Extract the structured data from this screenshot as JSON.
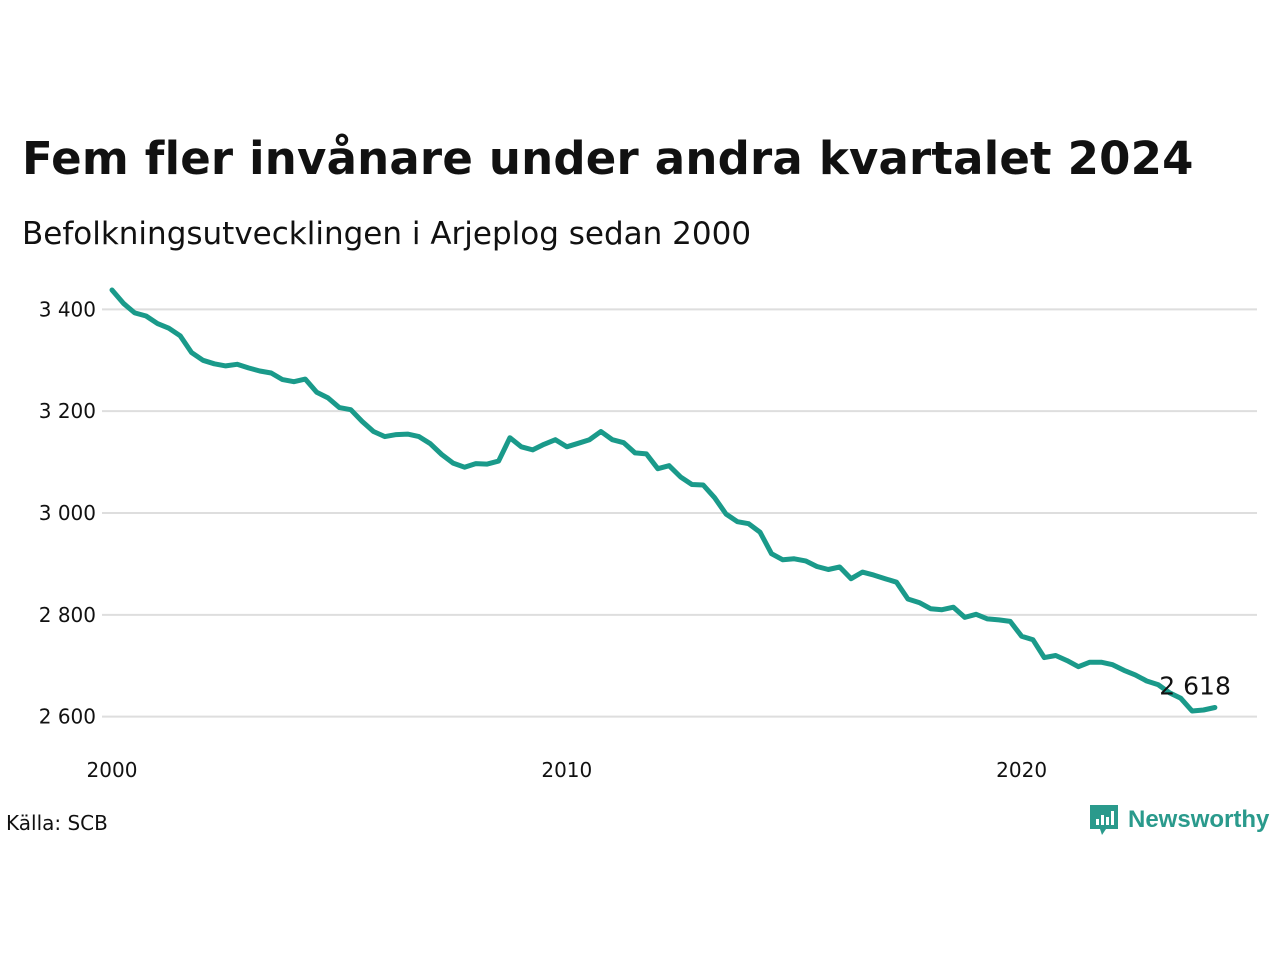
{
  "title": "Fem fler invånare under andra kvartalet 2024",
  "subtitle": "Befolkningsutvecklingen i Arjeplog sedan 2000",
  "source": "Källa: SCB",
  "brand": {
    "name": "Newsworthy",
    "color": "#2a9a8c",
    "icon": "newsworthy-logo-icon"
  },
  "chart_data": {
    "type": "line",
    "title": "Fem fler invånare under andra kvartalet 2024",
    "subtitle": "Befolkningsutvecklingen i Arjeplog sedan 2000",
    "xlabel": "",
    "ylabel": "",
    "xlim": [
      2000,
      2025
    ],
    "ylim": [
      2560,
      3440
    ],
    "y_ticks": [
      {
        "value": 2600,
        "label": "2 600"
      },
      {
        "value": 2800,
        "label": "2 800"
      },
      {
        "value": 3000,
        "label": "3 000"
      },
      {
        "value": 3200,
        "label": "3 200"
      },
      {
        "value": 3400,
        "label": "3 400"
      }
    ],
    "x_ticks": [
      {
        "value": 2000,
        "label": "2000"
      },
      {
        "value": 2010,
        "label": "2010"
      },
      {
        "value": 2020,
        "label": "2020"
      }
    ],
    "grid": true,
    "line_color": "#1a9a8a",
    "end_label": "2 618",
    "series": [
      {
        "values": [
          [
            2000.0,
            3438
          ],
          [
            2000.25,
            3412
          ],
          [
            2000.5,
            3393
          ],
          [
            2000.75,
            3387
          ],
          [
            2001.0,
            3372
          ],
          [
            2001.25,
            3363
          ],
          [
            2001.5,
            3348
          ],
          [
            2001.75,
            3315
          ],
          [
            2002.0,
            3300
          ],
          [
            2002.25,
            3293
          ],
          [
            2002.5,
            3289
          ],
          [
            2002.75,
            3292
          ],
          [
            2003.0,
            3285
          ],
          [
            2003.25,
            3279
          ],
          [
            2003.5,
            3275
          ],
          [
            2003.75,
            3262
          ],
          [
            2004.0,
            3258
          ],
          [
            2004.25,
            3263
          ],
          [
            2004.5,
            3237
          ],
          [
            2004.75,
            3226
          ],
          [
            2005.0,
            3207
          ],
          [
            2005.25,
            3203
          ],
          [
            2005.5,
            3180
          ],
          [
            2005.75,
            3160
          ],
          [
            2006.0,
            3150
          ],
          [
            2006.25,
            3154
          ],
          [
            2006.5,
            3155
          ],
          [
            2006.75,
            3150
          ],
          [
            2007.0,
            3136
          ],
          [
            2007.25,
            3115
          ],
          [
            2007.5,
            3098
          ],
          [
            2007.75,
            3090
          ],
          [
            2008.0,
            3097
          ],
          [
            2008.25,
            3096
          ],
          [
            2008.5,
            3102
          ],
          [
            2008.75,
            3148
          ],
          [
            2009.0,
            3130
          ],
          [
            2009.25,
            3124
          ],
          [
            2009.5,
            3135
          ],
          [
            2009.75,
            3144
          ],
          [
            2010.0,
            3130
          ],
          [
            2010.25,
            3137
          ],
          [
            2010.5,
            3144
          ],
          [
            2010.75,
            3160
          ],
          [
            2011.0,
            3144
          ],
          [
            2011.25,
            3138
          ],
          [
            2011.5,
            3118
          ],
          [
            2011.75,
            3116
          ],
          [
            2012.0,
            3087
          ],
          [
            2012.25,
            3093
          ],
          [
            2012.5,
            3071
          ],
          [
            2012.75,
            3056
          ],
          [
            2013.0,
            3055
          ],
          [
            2013.25,
            3030
          ],
          [
            2013.5,
            2998
          ],
          [
            2013.75,
            2983
          ],
          [
            2014.0,
            2979
          ],
          [
            2014.25,
            2962
          ],
          [
            2014.5,
            2920
          ],
          [
            2014.75,
            2908
          ],
          [
            2015.0,
            2910
          ],
          [
            2015.25,
            2906
          ],
          [
            2015.5,
            2895
          ],
          [
            2015.75,
            2889
          ],
          [
            2016.0,
            2894
          ],
          [
            2016.25,
            2871
          ],
          [
            2016.5,
            2884
          ],
          [
            2016.75,
            2878
          ],
          [
            2017.0,
            2871
          ],
          [
            2017.25,
            2864
          ],
          [
            2017.5,
            2831
          ],
          [
            2017.75,
            2824
          ],
          [
            2018.0,
            2812
          ],
          [
            2018.25,
            2810
          ],
          [
            2018.5,
            2815
          ],
          [
            2018.75,
            2795
          ],
          [
            2019.0,
            2801
          ],
          [
            2019.25,
            2792
          ],
          [
            2019.5,
            2790
          ],
          [
            2019.75,
            2787
          ],
          [
            2020.0,
            2758
          ],
          [
            2020.25,
            2751
          ],
          [
            2020.5,
            2716
          ],
          [
            2020.75,
            2720
          ],
          [
            2021.0,
            2710
          ],
          [
            2021.25,
            2698
          ],
          [
            2021.5,
            2707
          ],
          [
            2021.75,
            2707
          ],
          [
            2022.0,
            2702
          ],
          [
            2022.25,
            2691
          ],
          [
            2022.5,
            2682
          ],
          [
            2022.75,
            2670
          ],
          [
            2023.0,
            2663
          ],
          [
            2023.25,
            2647
          ],
          [
            2023.5,
            2636
          ],
          [
            2023.75,
            2611
          ],
          [
            2024.0,
            2613
          ],
          [
            2024.25,
            2618
          ]
        ]
      }
    ]
  }
}
